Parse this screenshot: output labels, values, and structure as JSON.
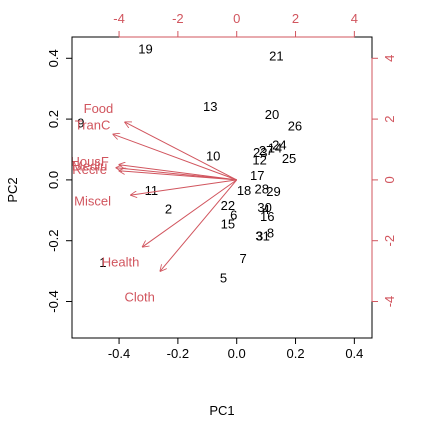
{
  "chart_data": {
    "type": "biplot",
    "xlabel": "PC1",
    "ylabel": "PC2",
    "xlim": [
      -0.56,
      0.46
    ],
    "ylim": [
      -0.52,
      0.47
    ],
    "bottom_ticks": [
      -0.4,
      -0.2,
      0.0,
      0.2,
      0.4
    ],
    "bottom_tick_labels": [
      "-0.4",
      "-0.2",
      "0.0",
      "0.2",
      "0.4"
    ],
    "left_ticks": [
      -0.4,
      -0.2,
      0.0,
      0.2,
      0.4
    ],
    "left_tick_labels": [
      "-0.4",
      "-0.2",
      "0.0",
      "0.2",
      "0.4"
    ],
    "top_ticks": [
      -4,
      -2,
      0,
      2,
      4
    ],
    "top_tick_labels": [
      "-4",
      "-2",
      "0",
      "2",
      "4"
    ],
    "right_ticks": [
      -4,
      -2,
      0,
      2,
      4
    ],
    "right_tick_labels": [
      "-4",
      "-2",
      "0",
      "2",
      "4"
    ],
    "loading_scale": 0.1,
    "observations": [
      {
        "label": "1",
        "x": -0.455,
        "y": -0.272
      },
      {
        "label": "2",
        "x": -0.232,
        "y": -0.095
      },
      {
        "label": "3",
        "x": 0.078,
        "y": -0.185
      },
      {
        "label": "4",
        "x": 0.1,
        "y": -0.098
      },
      {
        "label": "5",
        "x": -0.045,
        "y": -0.322
      },
      {
        "label": "6",
        "x": -0.01,
        "y": -0.115
      },
      {
        "label": "7",
        "x": 0.022,
        "y": -0.258
      },
      {
        "label": "8",
        "x": 0.115,
        "y": -0.175
      },
      {
        "label": "9",
        "x": -0.53,
        "y": 0.187
      },
      {
        "label": "10",
        "x": -0.08,
        "y": 0.078
      },
      {
        "label": "11",
        "x": -0.29,
        "y": -0.035
      },
      {
        "label": "12",
        "x": 0.078,
        "y": 0.065
      },
      {
        "label": "13",
        "x": -0.09,
        "y": 0.242
      },
      {
        "label": "14",
        "x": 0.13,
        "y": 0.105
      },
      {
        "label": "15",
        "x": -0.03,
        "y": -0.145
      },
      {
        "label": "16",
        "x": 0.104,
        "y": -0.12
      },
      {
        "label": "17",
        "x": 0.07,
        "y": 0.015
      },
      {
        "label": "18",
        "x": 0.025,
        "y": -0.035
      },
      {
        "label": "19",
        "x": -0.31,
        "y": 0.43
      },
      {
        "label": "20",
        "x": 0.12,
        "y": 0.215
      },
      {
        "label": "21",
        "x": 0.135,
        "y": 0.408
      },
      {
        "label": "22",
        "x": -0.03,
        "y": -0.085
      },
      {
        "label": "23",
        "x": 0.08,
        "y": 0.09
      },
      {
        "label": "24",
        "x": 0.145,
        "y": 0.115
      },
      {
        "label": "25",
        "x": 0.178,
        "y": 0.07
      },
      {
        "label": "26",
        "x": 0.198,
        "y": 0.178
      },
      {
        "label": "27",
        "x": 0.1,
        "y": 0.097
      },
      {
        "label": "28",
        "x": 0.085,
        "y": -0.03
      },
      {
        "label": "29",
        "x": 0.125,
        "y": -0.038
      },
      {
        "label": "30",
        "x": 0.095,
        "y": -0.09
      },
      {
        "label": "31",
        "x": 0.088,
        "y": -0.185
      }
    ],
    "loadings": [
      {
        "label": "Food",
        "x": -3.8,
        "y": 1.9,
        "label_x": -4.7,
        "label_y": 2.35
      },
      {
        "label": "TranC",
        "x": -4.2,
        "y": 1.5,
        "label_x": -4.9,
        "label_y": 1.8
      },
      {
        "label": "HousF",
        "x": -4.0,
        "y": 0.5,
        "label_x": -5.0,
        "label_y": 0.6
      },
      {
        "label": "Mediu",
        "x": -4.1,
        "y": 0.4,
        "label_x": -5.0,
        "label_y": 0.45
      },
      {
        "label": "Recre",
        "x": -4.0,
        "y": 0.3,
        "label_x": -5.0,
        "label_y": 0.35
      },
      {
        "label": "Miscel",
        "x": -3.6,
        "y": -0.5,
        "label_x": -4.9,
        "label_y": -0.7
      },
      {
        "label": "Health",
        "x": -3.2,
        "y": -2.2,
        "label_x": -3.95,
        "label_y": -2.7
      },
      {
        "label": "Cloth",
        "x": -2.6,
        "y": -3.0,
        "label_x": -3.3,
        "label_y": -3.85
      }
    ],
    "colors": {
      "variable": "#d1555e",
      "observation": "#000000"
    }
  }
}
